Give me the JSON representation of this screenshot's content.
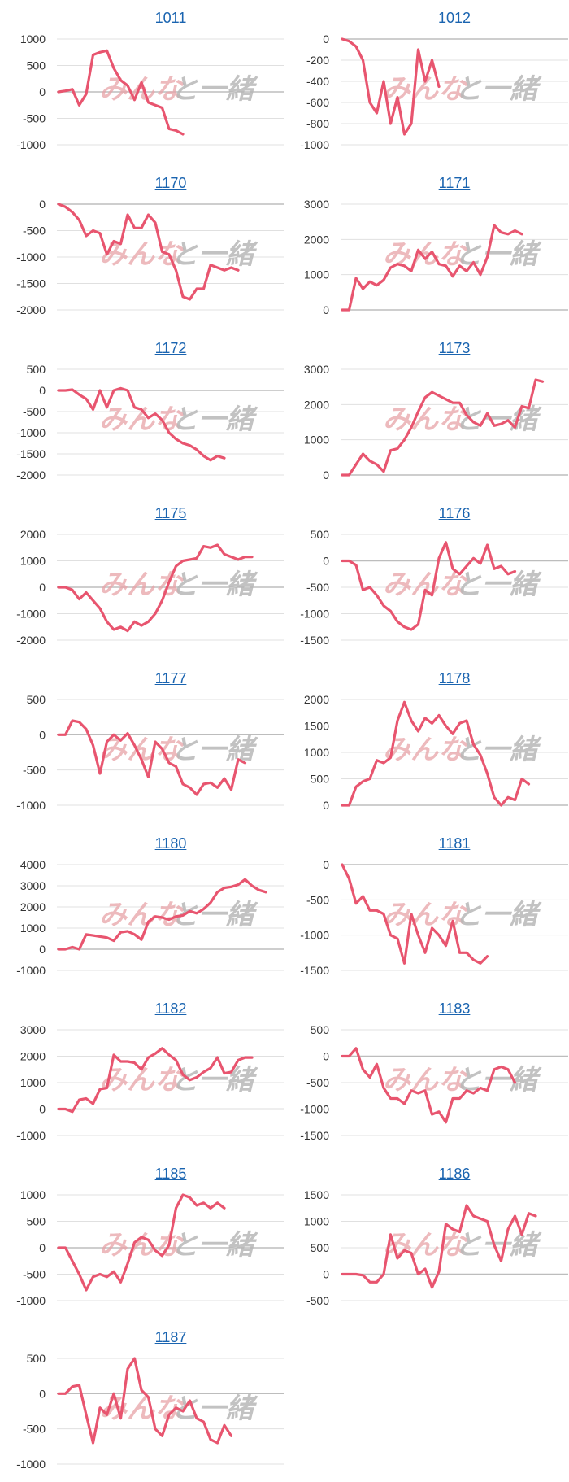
{
  "watermark": {
    "part1": "みんな",
    "part2": "と一緒"
  },
  "style": {
    "line_color": "#e8556f",
    "grid_color": "#e0e0e0",
    "baseline_color": "#bdbdbd",
    "title_color": "#1a64b0"
  },
  "chart_data": [
    {
      "type": "line",
      "title": "1011",
      "yticks": [
        1000,
        500,
        0,
        -500,
        -1000
      ],
      "ylim": [
        -1000,
        1000
      ],
      "values": [
        0,
        20,
        50,
        -250,
        -40,
        700,
        750,
        780,
        450,
        220,
        120,
        -150,
        180,
        -200,
        -250,
        -300,
        -700,
        -730,
        -800
      ]
    },
    {
      "type": "line",
      "title": "1012",
      "yticks": [
        0,
        -200,
        -400,
        -600,
        -800,
        -1000
      ],
      "ylim": [
        -1000,
        0
      ],
      "values": [
        0,
        -20,
        -70,
        -200,
        -600,
        -700,
        -400,
        -800,
        -550,
        -900,
        -800,
        -100,
        -400,
        -200,
        -450
      ]
    },
    {
      "type": "line",
      "title": "1170",
      "yticks": [
        0,
        -500,
        -1000,
        -1500,
        -2000
      ],
      "ylim": [
        -2000,
        0
      ],
      "values": [
        0,
        -50,
        -150,
        -300,
        -600,
        -500,
        -550,
        -950,
        -700,
        -750,
        -200,
        -450,
        -450,
        -200,
        -350,
        -900,
        -950,
        -1250,
        -1750,
        -1800,
        -1600,
        -1600,
        -1150,
        -1200,
        -1250,
        -1200,
        -1250
      ]
    },
    {
      "type": "line",
      "title": "1171",
      "yticks": [
        3000,
        2000,
        1000,
        0
      ],
      "ylim": [
        0,
        3000
      ],
      "values": [
        0,
        0,
        900,
        600,
        800,
        700,
        850,
        1200,
        1300,
        1250,
        1100,
        1700,
        1450,
        1650,
        1300,
        1250,
        950,
        1250,
        1100,
        1350,
        1000,
        1500,
        2400,
        2200,
        2150,
        2250,
        2150
      ]
    },
    {
      "type": "line",
      "title": "1172",
      "yticks": [
        500,
        0,
        -500,
        -1000,
        -1500,
        -2000
      ],
      "ylim": [
        -2000,
        500
      ],
      "values": [
        0,
        0,
        20,
        -100,
        -200,
        -450,
        0,
        -400,
        0,
        50,
        0,
        -400,
        -450,
        -650,
        -550,
        -700,
        -1000,
        -1150,
        -1250,
        -1300,
        -1400,
        -1550,
        -1650,
        -1550,
        -1600
      ]
    },
    {
      "type": "line",
      "title": "1173",
      "yticks": [
        3000,
        2000,
        1000,
        0
      ],
      "ylim": [
        0,
        3000
      ],
      "values": [
        0,
        0,
        300,
        600,
        400,
        300,
        100,
        700,
        750,
        1000,
        1350,
        1800,
        2200,
        2350,
        2250,
        2150,
        2050,
        2050,
        1700,
        1500,
        1400,
        1750,
        1400,
        1450,
        1550,
        1350,
        1950,
        1900,
        2700,
        2650
      ]
    },
    {
      "type": "line",
      "title": "1175",
      "yticks": [
        2000,
        1000,
        0,
        -1000,
        -2000
      ],
      "ylim": [
        -2000,
        2000
      ],
      "values": [
        0,
        0,
        -100,
        -450,
        -200,
        -500,
        -800,
        -1300,
        -1600,
        -1500,
        -1650,
        -1300,
        -1450,
        -1300,
        -1000,
        -500,
        200,
        800,
        1000,
        1050,
        1100,
        1550,
        1500,
        1600,
        1250,
        1150,
        1050,
        1150,
        1150
      ]
    },
    {
      "type": "line",
      "title": "1176",
      "yticks": [
        500,
        0,
        -500,
        -1000,
        -1500
      ],
      "ylim": [
        -1500,
        500
      ],
      "values": [
        0,
        0,
        -80,
        -550,
        -500,
        -650,
        -850,
        -950,
        -1150,
        -1250,
        -1300,
        -1200,
        -550,
        -650,
        50,
        350,
        -150,
        -250,
        -100,
        50,
        -50,
        300,
        -150,
        -100,
        -250,
        -200
      ]
    },
    {
      "type": "line",
      "title": "1177",
      "yticks": [
        500,
        0,
        -500,
        -1000
      ],
      "ylim": [
        -1000,
        500
      ],
      "values": [
        0,
        0,
        200,
        180,
        80,
        -150,
        -550,
        -100,
        0,
        -80,
        20,
        -150,
        -350,
        -600,
        -100,
        -200,
        -400,
        -450,
        -700,
        -750,
        -850,
        -700,
        -680,
        -750,
        -620,
        -780,
        -350,
        -400
      ]
    },
    {
      "type": "line",
      "title": "1178",
      "yticks": [
        2000,
        1500,
        1000,
        500,
        0
      ],
      "ylim": [
        0,
        2000
      ],
      "values": [
        0,
        0,
        350,
        450,
        500,
        850,
        800,
        900,
        1600,
        1950,
        1600,
        1400,
        1650,
        1550,
        1700,
        1500,
        1350,
        1550,
        1600,
        1150,
        950,
        600,
        150,
        0,
        150,
        100,
        500,
        400
      ]
    },
    {
      "type": "line",
      "title": "1180",
      "yticks": [
        4000,
        3000,
        2000,
        1000,
        0,
        -1000
      ],
      "ylim": [
        -1000,
        4000
      ],
      "values": [
        0,
        0,
        100,
        0,
        700,
        650,
        600,
        550,
        400,
        800,
        850,
        700,
        450,
        1300,
        1550,
        1500,
        1400,
        1550,
        1600,
        1800,
        1700,
        1900,
        2200,
        2700,
        2900,
        2950,
        3050,
        3300,
        3000,
        2800,
        2700
      ]
    },
    {
      "type": "line",
      "title": "1181",
      "yticks": [
        0,
        -500,
        -1000,
        -1500
      ],
      "ylim": [
        -1500,
        0
      ],
      "values": [
        0,
        -200,
        -550,
        -450,
        -650,
        -650,
        -700,
        -1000,
        -1050,
        -1400,
        -700,
        -1000,
        -1250,
        -900,
        -1000,
        -1150,
        -800,
        -1250,
        -1250,
        -1350,
        -1400,
        -1300
      ]
    },
    {
      "type": "line",
      "title": "1182",
      "yticks": [
        3000,
        2000,
        1000,
        0,
        -1000
      ],
      "ylim": [
        -1000,
        3000
      ],
      "values": [
        0,
        0,
        -100,
        350,
        400,
        200,
        750,
        800,
        2050,
        1800,
        1800,
        1750,
        1500,
        1950,
        2100,
        2300,
        2050,
        1850,
        1300,
        1100,
        1200,
        1400,
        1550,
        1950,
        1350,
        1400,
        1850,
        1950,
        1950
      ]
    },
    {
      "type": "line",
      "title": "1183",
      "yticks": [
        500,
        0,
        -500,
        -1000,
        -1500
      ],
      "ylim": [
        -1500,
        500
      ],
      "values": [
        0,
        0,
        150,
        -250,
        -400,
        -150,
        -600,
        -800,
        -800,
        -900,
        -650,
        -700,
        -650,
        -1100,
        -1050,
        -1250,
        -800,
        -800,
        -650,
        -700,
        -600,
        -650,
        -250,
        -200,
        -250,
        -500
      ]
    },
    {
      "type": "line",
      "title": "1185",
      "yticks": [
        1000,
        500,
        0,
        -500,
        -1000
      ],
      "ylim": [
        -1000,
        1000
      ],
      "values": [
        0,
        0,
        -250,
        -500,
        -800,
        -550,
        -500,
        -550,
        -450,
        -650,
        -300,
        100,
        200,
        150,
        -50,
        -150,
        50,
        750,
        1000,
        950,
        800,
        850,
        750,
        850,
        750
      ]
    },
    {
      "type": "line",
      "title": "1186",
      "yticks": [
        1500,
        1000,
        500,
        0,
        -500
      ],
      "ylim": [
        -500,
        1500
      ],
      "values": [
        0,
        0,
        0,
        -20,
        -150,
        -150,
        0,
        750,
        300,
        450,
        400,
        0,
        100,
        -250,
        50,
        950,
        850,
        800,
        1300,
        1100,
        1050,
        1000,
        550,
        250,
        850,
        1100,
        750,
        1150,
        1100
      ]
    },
    {
      "type": "line",
      "title": "1187",
      "yticks": [
        500,
        0,
        -500,
        -1000
      ],
      "ylim": [
        -1000,
        500
      ],
      "values": [
        0,
        0,
        100,
        120,
        -300,
        -700,
        -200,
        -300,
        0,
        -350,
        350,
        500,
        50,
        -50,
        -500,
        -600,
        -300,
        -200,
        -250,
        -100,
        -350,
        -400,
        -650,
        -700,
        -450,
        -600
      ]
    }
  ]
}
